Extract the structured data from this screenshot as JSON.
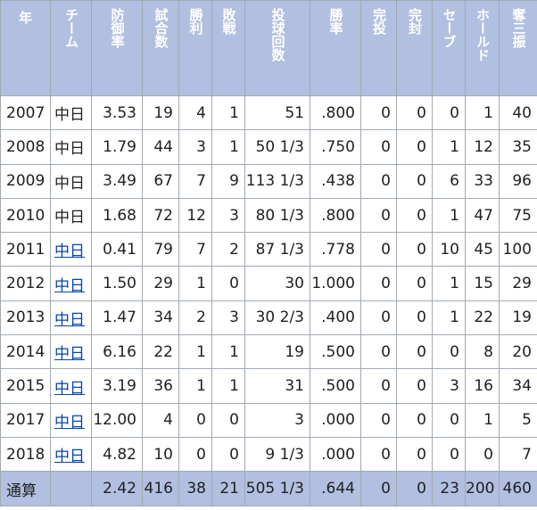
{
  "headers": [
    "年",
    "チーム",
    "防御率",
    "試合数",
    "勝利",
    "敗戦",
    "投球回数",
    "勝率",
    "完投",
    "完封",
    "セーブ",
    "ホールド",
    "奪三振"
  ],
  "rows": [
    {
      "year": "2007",
      "team": "中日",
      "team_link": false,
      "era": "3.53",
      "games": "19",
      "wins": "4",
      "losses": "1",
      "innings": "51",
      "pct": ".800",
      "cg": "0",
      "sho": "0",
      "sv": "0",
      "hld": "1",
      "so": "40"
    },
    {
      "year": "2008",
      "team": "中日",
      "team_link": false,
      "era": "1.79",
      "games": "44",
      "wins": "3",
      "losses": "1",
      "innings": "50 1/3",
      "pct": ".750",
      "cg": "0",
      "sho": "0",
      "sv": "1",
      "hld": "12",
      "so": "35"
    },
    {
      "year": "2009",
      "team": "中日",
      "team_link": false,
      "era": "3.49",
      "games": "67",
      "wins": "7",
      "losses": "9",
      "innings": "113 1/3",
      "pct": ".438",
      "cg": "0",
      "sho": "0",
      "sv": "6",
      "hld": "33",
      "so": "96"
    },
    {
      "year": "2010",
      "team": "中日",
      "team_link": false,
      "era": "1.68",
      "games": "72",
      "wins": "12",
      "losses": "3",
      "innings": "80 1/3",
      "pct": ".800",
      "cg": "0",
      "sho": "0",
      "sv": "1",
      "hld": "47",
      "so": "75"
    },
    {
      "year": "2011",
      "team": "中日",
      "team_link": true,
      "era": "0.41",
      "games": "79",
      "wins": "7",
      "losses": "2",
      "innings": "87 1/3",
      "pct": ".778",
      "cg": "0",
      "sho": "0",
      "sv": "10",
      "hld": "45",
      "so": "100"
    },
    {
      "year": "2012",
      "team": "中日",
      "team_link": true,
      "era": "1.50",
      "games": "29",
      "wins": "1",
      "losses": "0",
      "innings": "30",
      "pct": "1.000",
      "cg": "0",
      "sho": "0",
      "sv": "1",
      "hld": "15",
      "so": "29"
    },
    {
      "year": "2013",
      "team": "中日",
      "team_link": true,
      "era": "1.47",
      "games": "34",
      "wins": "2",
      "losses": "3",
      "innings": "30 2/3",
      "pct": ".400",
      "cg": "0",
      "sho": "0",
      "sv": "1",
      "hld": "22",
      "so": "19"
    },
    {
      "year": "2014",
      "team": "中日",
      "team_link": true,
      "era": "6.16",
      "games": "22",
      "wins": "1",
      "losses": "1",
      "innings": "19",
      "pct": ".500",
      "cg": "0",
      "sho": "0",
      "sv": "0",
      "hld": "8",
      "so": "20"
    },
    {
      "year": "2015",
      "team": "中日",
      "team_link": true,
      "era": "3.19",
      "games": "36",
      "wins": "1",
      "losses": "1",
      "innings": "31",
      "pct": ".500",
      "cg": "0",
      "sho": "0",
      "sv": "3",
      "hld": "16",
      "so": "34"
    },
    {
      "year": "2017",
      "team": "中日",
      "team_link": true,
      "era": "12.00",
      "games": "4",
      "wins": "0",
      "losses": "0",
      "innings": "3",
      "pct": ".000",
      "cg": "0",
      "sho": "0",
      "sv": "0",
      "hld": "1",
      "so": "5"
    },
    {
      "year": "2018",
      "team": "中日",
      "team_link": true,
      "era": "4.82",
      "games": "10",
      "wins": "0",
      "losses": "0",
      "innings": "9 1/3",
      "pct": ".000",
      "cg": "0",
      "sho": "0",
      "sv": "0",
      "hld": "0",
      "so": "7"
    }
  ],
  "total": {
    "label": "通算",
    "era": "2.42",
    "games": "416",
    "wins": "38",
    "losses": "21",
    "innings": "505 1/3",
    "pct": ".644",
    "cg": "0",
    "sho": "0",
    "sv": "23",
    "hld": "200",
    "so": "460"
  },
  "colors": {
    "header_bg": "#b1bfe0",
    "link": "#0645ad",
    "border": "#a2a9b1"
  }
}
